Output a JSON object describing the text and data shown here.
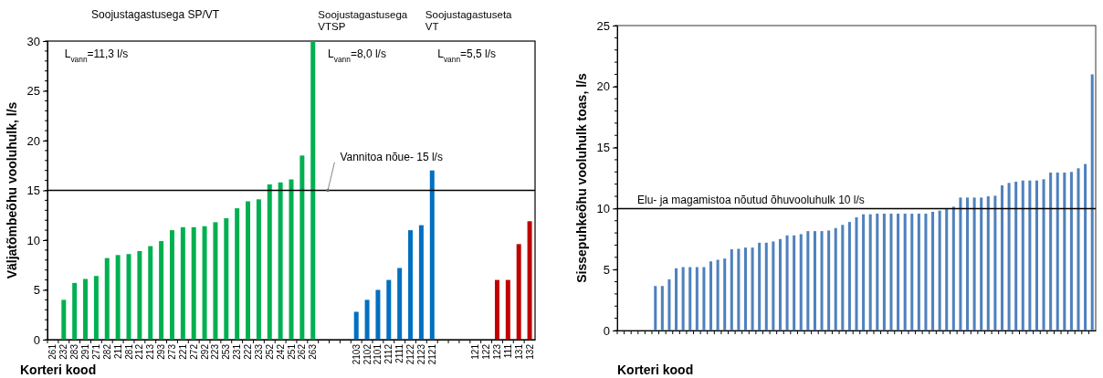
{
  "chart_data": [
    {
      "type": "bar",
      "xlabel": "Korteri kood",
      "ylabel": "Väljatõmbeõhu vooluhulk, l/s",
      "categories": [
        "261",
        "232",
        "283",
        "291",
        "271",
        "282",
        "211",
        "281",
        "212",
        "213",
        "293",
        "273",
        "221",
        "272",
        "292",
        "223",
        "253",
        "231",
        "222",
        "233",
        "252",
        "242",
        "251",
        "262",
        "263",
        null,
        null,
        null,
        "2103",
        "2102",
        "2101",
        "2112",
        "2111",
        "2122",
        "2123",
        "2121",
        null,
        null,
        null,
        "121",
        "122",
        "123",
        "111",
        "131",
        "132"
      ],
      "series": [
        {
          "color": "#00b050",
          "values": [
            null,
            4.0,
            5.7,
            6.1,
            6.4,
            8.2,
            8.5,
            8.6,
            8.9,
            9.4,
            9.9,
            11.0,
            11.3,
            11.3,
            11.4,
            11.8,
            12.2,
            13.2,
            13.9,
            14.1,
            15.6,
            15.8,
            16.1,
            18.5,
            30,
            null,
            null,
            null,
            null,
            null,
            null,
            null,
            null,
            null,
            null,
            null,
            null,
            null,
            null,
            null,
            null,
            null,
            null,
            null,
            null
          ]
        },
        {
          "color": "#0070c0",
          "values": [
            null,
            null,
            null,
            null,
            null,
            null,
            null,
            null,
            null,
            null,
            null,
            null,
            null,
            null,
            null,
            null,
            null,
            null,
            null,
            null,
            null,
            null,
            null,
            null,
            null,
            null,
            null,
            null,
            2.8,
            4.0,
            5.0,
            6.0,
            7.2,
            11.0,
            11.5,
            17.0,
            null,
            null,
            null,
            null,
            null,
            null,
            null,
            null,
            null
          ]
        },
        {
          "color": "#c00000",
          "values": [
            null,
            null,
            null,
            null,
            null,
            null,
            null,
            null,
            null,
            null,
            null,
            null,
            null,
            null,
            null,
            null,
            null,
            null,
            null,
            null,
            null,
            null,
            null,
            null,
            null,
            null,
            null,
            null,
            null,
            null,
            null,
            null,
            null,
            null,
            null,
            null,
            null,
            null,
            null,
            null,
            null,
            6.0,
            6.0,
            9.6,
            11.9
          ]
        }
      ],
      "ylim": [
        0,
        30
      ],
      "yticks": [
        0,
        5,
        10,
        15,
        20,
        25,
        30
      ],
      "ref_lines": [
        {
          "axis": "y",
          "value": 15,
          "label": "Vannitoa nõue- 15 l/s",
          "color": "#000000"
        }
      ],
      "annotations": [
        "Soojustagastusega  SP/VT",
        "Soojustagastusega VTSP",
        "Soojustagastuseta VT",
        "L$_{vann}$=11,3 l/s",
        "L$_{vann}$=8,0 l/s",
        "L$_{vann}$=5,5 l/s"
      ],
      "grid": false
    },
    {
      "type": "bar",
      "xlabel": "Korteri kood",
      "ylabel": "Sissepuhkeõhu vooluhulk toas, l/s",
      "categories": [
        null,
        null,
        null,
        null,
        null,
        null,
        null,
        null,
        null,
        null,
        null,
        null,
        null,
        null,
        null,
        null,
        null,
        null,
        null,
        null,
        null,
        null,
        null,
        null,
        null,
        null,
        null,
        null,
        null,
        null,
        null,
        null,
        null,
        null,
        null,
        null,
        null,
        null,
        null,
        null,
        null,
        null,
        null,
        null,
        null,
        null,
        null,
        null,
        null,
        null,
        null,
        null,
        null,
        null,
        null,
        null,
        null,
        null,
        null,
        null,
        null,
        null,
        null,
        null,
        null,
        null,
        null,
        null,
        null
      ],
      "series": [
        {
          "color": "#4f81bd",
          "values": [
            null,
            null,
            null,
            null,
            null,
            3.65,
            3.65,
            4.2,
            5.1,
            5.2,
            5.2,
            5.2,
            5.2,
            5.67,
            5.8,
            5.9,
            6.66,
            6.7,
            6.8,
            6.8,
            7.2,
            7.2,
            7.3,
            7.5,
            7.8,
            7.8,
            7.9,
            8.15,
            8.15,
            8.15,
            8.2,
            8.4,
            8.66,
            8.9,
            9.28,
            9.53,
            9.53,
            9.58,
            9.58,
            9.58,
            9.58,
            9.58,
            9.58,
            9.58,
            9.58,
            9.73,
            9.83,
            9.95,
            10.15,
            10.9,
            10.9,
            10.9,
            10.9,
            11.0,
            11.05,
            11.9,
            12.1,
            12.2,
            12.3,
            12.3,
            12.3,
            12.4,
            12.95,
            12.95,
            12.95,
            13.0,
            13.3,
            13.65,
            21.0
          ]
        }
      ],
      "ylim": [
        0,
        25
      ],
      "yticks": [
        0,
        5,
        10,
        15,
        20,
        25
      ],
      "ref_lines": [
        {
          "axis": "y",
          "value": 10,
          "label": "Elu- ja magamistoa nõutud õhuvooluhulk 10 l/s",
          "color": "#000000"
        }
      ],
      "grid": false
    }
  ]
}
